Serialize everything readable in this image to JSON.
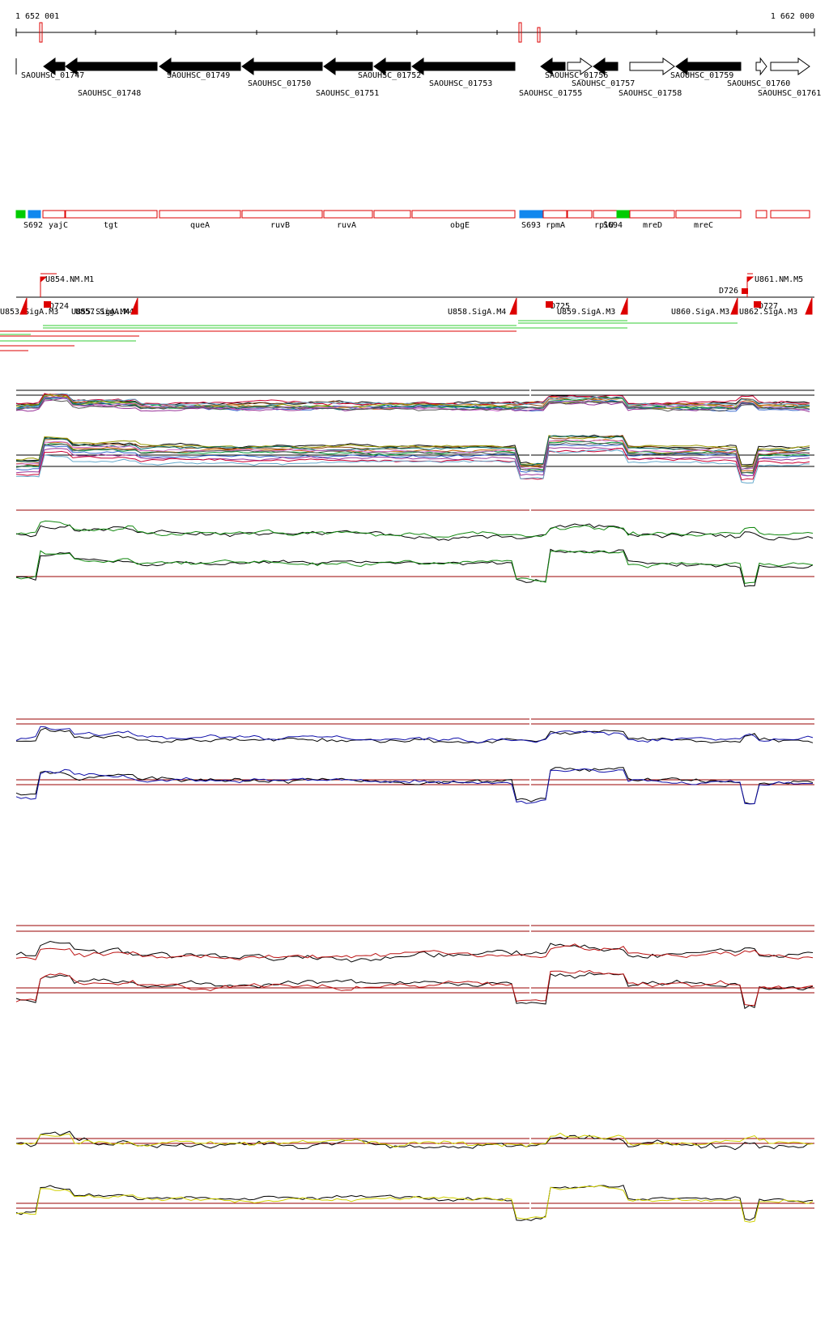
{
  "ruler": {
    "start_label": "1 652 001",
    "end_label": "1 662 000"
  },
  "genes": [
    {
      "label": "SAOUHSC_01747",
      "strand": "-",
      "fill": "black"
    },
    {
      "label": "SAOUHSC_01748",
      "strand": "-",
      "fill": "black"
    },
    {
      "label": "SAOUHSC_01749",
      "strand": "-",
      "fill": "black"
    },
    {
      "label": "SAOUHSC_01750",
      "strand": "-",
      "fill": "black"
    },
    {
      "label": "SAOUHSC_01751",
      "strand": "-",
      "fill": "black"
    },
    {
      "label": "SAOUHSC_01752",
      "strand": "-",
      "fill": "black"
    },
    {
      "label": "SAOUHSC_01753",
      "strand": "-",
      "fill": "black"
    },
    {
      "label": "SAOUHSC_01755",
      "strand": "-",
      "fill": "black"
    },
    {
      "label": "SAOUHSC_01756",
      "strand": "+",
      "fill": "white"
    },
    {
      "label": "SAOUHSC_01757",
      "strand": "-",
      "fill": "black"
    },
    {
      "label": "SAOUHSC_01758",
      "strand": "+",
      "fill": "white"
    },
    {
      "label": "SAOUHSC_01759",
      "strand": "-",
      "fill": "black"
    },
    {
      "label": "SAOUHSC_01760",
      "strand": "+",
      "fill": "white"
    },
    {
      "label": "SAOUHSC_01761",
      "strand": "+",
      "fill": "white"
    }
  ],
  "features": [
    {
      "label": "S692",
      "color": "#00cc00"
    },
    {
      "label": "",
      "color": "#1188ee"
    },
    {
      "label": "yajC",
      "color": "#ffffff"
    },
    {
      "label": "tgt",
      "color": "#ffffff"
    },
    {
      "label": "queA",
      "color": "#ffffff"
    },
    {
      "label": "ruvB",
      "color": "#ffffff"
    },
    {
      "label": "ruvA",
      "color": "#ffffff"
    },
    {
      "label": "",
      "color": "#ffffff"
    },
    {
      "label": "obgE",
      "color": "#ffffff"
    },
    {
      "label": "S693",
      "color": "#1188ee"
    },
    {
      "label": "rpmA",
      "color": "#ffffff"
    },
    {
      "label": "",
      "color": "#ffffff"
    },
    {
      "label": "rplU",
      "color": "#ffffff"
    },
    {
      "label": "S694",
      "color": "#00cc00"
    },
    {
      "label": "mreD",
      "color": "#ffffff"
    },
    {
      "label": "mreC",
      "color": "#ffffff"
    },
    {
      "label": "",
      "color": "#ffffff"
    },
    {
      "label": "",
      "color": "#ffffff"
    }
  ],
  "upper_sites": [
    {
      "label": "U854.NM.M1"
    },
    {
      "label": "U861.NM.M5"
    },
    {
      "label": "D726"
    }
  ],
  "lower_sites": [
    {
      "label": "U853.SigA.M3"
    },
    {
      "label": "D724"
    },
    {
      "label": "U855.SigA.M4"
    },
    {
      "label": "U857.SigA.M4"
    },
    {
      "label": "U858.SigA.M4"
    },
    {
      "label": "D725"
    },
    {
      "label": "U859.SigA.M3"
    },
    {
      "label": "U860.SigA.M3"
    },
    {
      "label": "D727"
    },
    {
      "label": "U862.SigA.M3"
    }
  ],
  "track_colors": {
    "panel_a": "#7a3d10",
    "panel_b": "#11880f",
    "panel_c": "#1010aa",
    "panel_d": "#bb1111",
    "panel_e": "#d0d000",
    "reference": "#990000",
    "gene": "#000000",
    "feature_outline": "#dd0000"
  }
}
